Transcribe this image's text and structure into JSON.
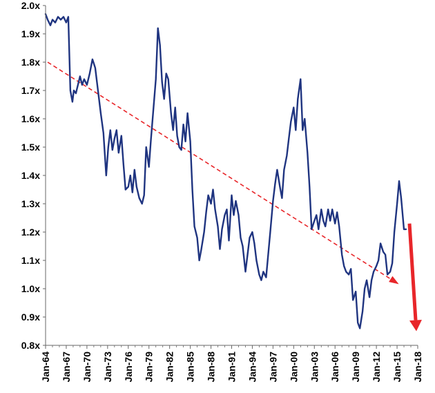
{
  "chart_data": {
    "type": "line",
    "title": "",
    "xlabel": "",
    "ylabel": "",
    "ylim": [
      0.8,
      2.0
    ],
    "y_ticks": [
      0.8,
      0.9,
      1.0,
      1.1,
      1.2,
      1.3,
      1.4,
      1.5,
      1.6,
      1.7,
      1.8,
      1.9,
      2.0
    ],
    "y_tick_labels": [
      "0.8x",
      "0.9x",
      "1.0x",
      "1.1x",
      "1.2x",
      "1.3x",
      "1.4x",
      "1.5x",
      "1.6x",
      "1.7x",
      "1.8x",
      "1.9x",
      "2.0x"
    ],
    "x_range": [
      1964.0,
      2018.0
    ],
    "x_ticks": [
      1964,
      1967,
      1970,
      1973,
      1976,
      1979,
      1982,
      1985,
      1988,
      1991,
      1994,
      1997,
      2000,
      2003,
      2006,
      2009,
      2012,
      2015,
      2018
    ],
    "x_tick_labels": [
      "Jan-64",
      "Jan-67",
      "Jan-70",
      "Jan-73",
      "Jan-76",
      "Jan-79",
      "Jan-82",
      "Jan-85",
      "Jan-88",
      "Jan-91",
      "Jan-94",
      "Jan-97",
      "Jan-00",
      "Jan-03",
      "Jan-06",
      "Jan-09",
      "Jan-12",
      "Jan-15",
      "Jan-18"
    ],
    "grid": false,
    "legend": "none",
    "colors": {
      "series": "#1f3480",
      "trend": "#e8262a",
      "arrow": "#e8262a",
      "axis": "#666666"
    },
    "series": [
      {
        "x": [
          1964.0,
          1964.3,
          1964.7,
          1965.0,
          1965.4,
          1965.8,
          1966.2,
          1966.6,
          1967.0,
          1967.3,
          1967.6,
          1967.9,
          1968.1,
          1968.4,
          1968.7,
          1969.0,
          1969.3,
          1969.6,
          1970.0,
          1970.4,
          1970.8,
          1971.2,
          1971.6,
          1972.0,
          1972.4,
          1972.8,
          1973.1,
          1973.4,
          1973.7,
          1974.0,
          1974.3,
          1974.6,
          1975.0,
          1975.3,
          1975.6,
          1976.0,
          1976.3,
          1976.6,
          1976.9,
          1977.2,
          1977.6,
          1978.0,
          1978.3,
          1978.6,
          1979.0,
          1979.3,
          1979.6,
          1980.0,
          1980.3,
          1980.6,
          1980.9,
          1981.2,
          1981.5,
          1981.8,
          1982.2,
          1982.5,
          1982.8,
          1983.1,
          1983.4,
          1983.7,
          1984.0,
          1984.3,
          1984.6,
          1985.0,
          1985.3,
          1985.6,
          1986.0,
          1986.3,
          1986.6,
          1987.0,
          1987.3,
          1987.6,
          1988.0,
          1988.3,
          1988.6,
          1989.0,
          1989.3,
          1989.6,
          1990.0,
          1990.3,
          1990.6,
          1991.0,
          1991.3,
          1991.6,
          1992.0,
          1992.3,
          1992.6,
          1993.0,
          1993.3,
          1993.6,
          1994.0,
          1994.3,
          1994.6,
          1995.0,
          1995.3,
          1995.6,
          1996.0,
          1996.3,
          1996.6,
          1997.0,
          1997.3,
          1997.6,
          1998.0,
          1998.3,
          1998.6,
          1999.0,
          1999.3,
          1999.6,
          2000.0,
          2000.3,
          2000.6,
          2001.0,
          2001.3,
          2001.6,
          2002.0,
          2002.3,
          2002.6,
          2003.0,
          2003.3,
          2003.6,
          2004.0,
          2004.3,
          2004.6,
          2005.0,
          2005.3,
          2005.6,
          2006.0,
          2006.3,
          2006.6,
          2007.0,
          2007.3,
          2007.6,
          2008.0,
          2008.3,
          2008.6,
          2009.0,
          2009.3,
          2009.6,
          2010.0,
          2010.3,
          2010.6,
          2011.0,
          2011.3,
          2011.6,
          2012.0,
          2012.3,
          2012.6,
          2013.0,
          2013.3,
          2013.6,
          2014.0,
          2014.3,
          2014.6,
          2015.0,
          2015.3,
          2015.6,
          2016.0,
          2016.3
        ],
        "values": [
          1.97,
          1.95,
          1.93,
          1.95,
          1.94,
          1.96,
          1.95,
          1.96,
          1.94,
          1.96,
          1.7,
          1.66,
          1.7,
          1.69,
          1.72,
          1.75,
          1.72,
          1.74,
          1.72,
          1.76,
          1.81,
          1.78,
          1.7,
          1.62,
          1.55,
          1.4,
          1.5,
          1.56,
          1.49,
          1.53,
          1.56,
          1.48,
          1.54,
          1.44,
          1.35,
          1.36,
          1.4,
          1.34,
          1.42,
          1.36,
          1.32,
          1.3,
          1.33,
          1.5,
          1.43,
          1.53,
          1.62,
          1.74,
          1.92,
          1.86,
          1.73,
          1.67,
          1.76,
          1.74,
          1.62,
          1.56,
          1.64,
          1.54,
          1.5,
          1.49,
          1.58,
          1.52,
          1.62,
          1.52,
          1.35,
          1.22,
          1.18,
          1.1,
          1.14,
          1.2,
          1.27,
          1.33,
          1.3,
          1.35,
          1.28,
          1.22,
          1.14,
          1.21,
          1.26,
          1.28,
          1.17,
          1.33,
          1.26,
          1.31,
          1.26,
          1.18,
          1.15,
          1.06,
          1.12,
          1.18,
          1.2,
          1.16,
          1.1,
          1.05,
          1.03,
          1.06,
          1.04,
          1.12,
          1.2,
          1.31,
          1.37,
          1.42,
          1.36,
          1.32,
          1.42,
          1.47,
          1.53,
          1.59,
          1.64,
          1.56,
          1.67,
          1.74,
          1.56,
          1.6,
          1.48,
          1.36,
          1.21,
          1.24,
          1.26,
          1.21,
          1.28,
          1.24,
          1.22,
          1.28,
          1.24,
          1.28,
          1.23,
          1.27,
          1.22,
          1.12,
          1.08,
          1.06,
          1.05,
          1.07,
          0.96,
          0.99,
          0.88,
          0.86,
          0.92,
          1.0,
          1.03,
          0.97,
          1.03,
          1.06,
          1.08,
          1.1,
          1.16,
          1.13,
          1.12,
          1.05,
          1.06,
          1.09,
          1.2,
          1.3,
          1.38,
          1.32,
          1.21,
          1.21
        ]
      }
    ],
    "trendline": {
      "x": [
        1964.3,
        2015.0
      ],
      "values": [
        1.8,
        1.02
      ]
    },
    "arrow": {
      "x": [
        2016.8,
        2017.8
      ],
      "values": [
        1.23,
        0.85
      ]
    }
  }
}
